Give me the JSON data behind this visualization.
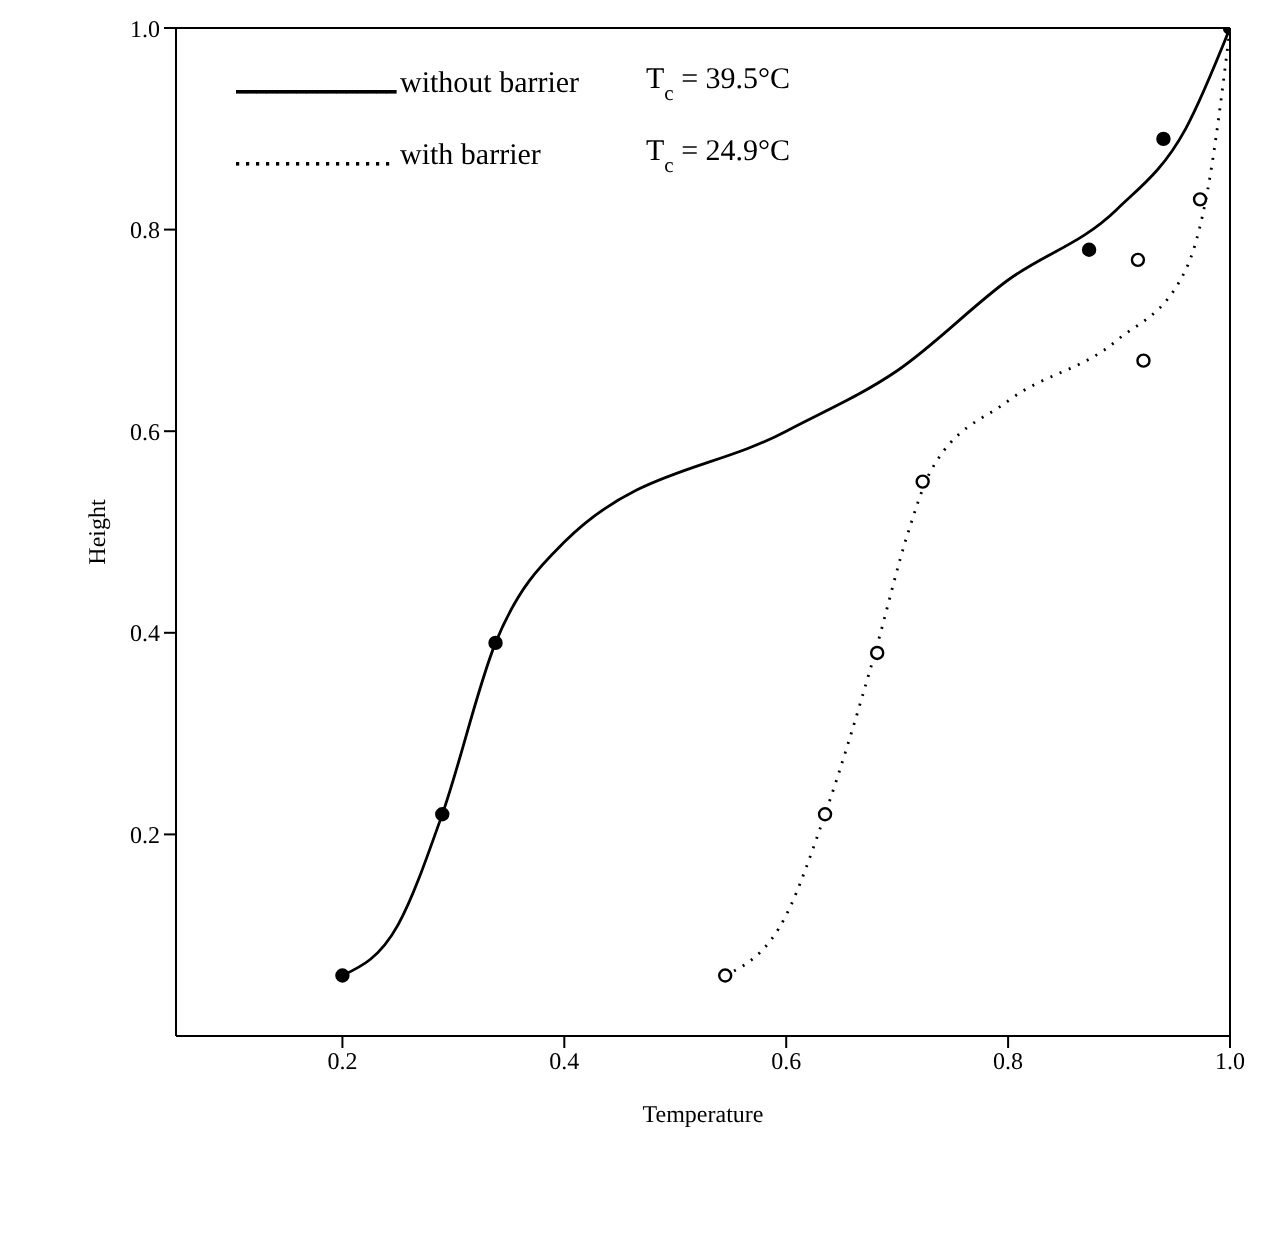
{
  "chart_data": {
    "type": "line",
    "xlabel": "Temperature",
    "ylabel": "Height",
    "xlim": [
      0.05,
      1.0
    ],
    "xticks": [
      0.2,
      0.4,
      0.6,
      0.8,
      {
        "value": 1,
        "label": "1.0"
      }
    ],
    "ylim": [
      0,
      1.0
    ],
    "yticks": [
      0.2,
      0.4,
      0.6,
      0.8,
      {
        "value": 1,
        "label": "1.0"
      }
    ],
    "grid": false,
    "legend": "top left",
    "annotations": [
      "T$_{c}$ = 39.5°C",
      "T$_{c}$ = 24.9°C"
    ],
    "series": [
      {
        "name": "without barrier",
        "type": "line",
        "color": "#000000",
        "line_style": "solid",
        "marker": "none",
        "x": [
          0.2,
          0.25,
          0.29,
          0.338,
          0.4,
          0.6,
          0.7,
          0.8,
          0.898,
          0.96,
          1.0
        ],
        "values": [
          0.06,
          0.11,
          0.22,
          0.39,
          0.49,
          0.6,
          0.66,
          0.75,
          0.82,
          0.9,
          1.0
        ]
      },
      {
        "name": "with barrier",
        "type": "line",
        "color": "#000000",
        "line_style": "dotted",
        "marker": "none",
        "x": [
          0.545,
          0.6,
          0.635,
          0.68,
          0.71,
          0.73,
          0.8,
          0.898,
          0.96,
          0.98,
          1.0
        ],
        "values": [
          0.06,
          0.12,
          0.22,
          0.38,
          0.5,
          0.56,
          0.63,
          0.69,
          0.76,
          0.84,
          1.0
        ]
      },
      {
        "type": "scatter",
        "color": "#000000",
        "marker": "circle",
        "x": [
          0.2,
          0.29,
          0.338,
          0.873,
          0.94,
          1.0
        ],
        "values": [
          0.06,
          0.22,
          0.39,
          0.78,
          0.89,
          1.0
        ]
      },
      {
        "type": "scatter",
        "color": "#000000",
        "marker": "circle",
        "x": [
          0.545,
          0.635,
          0.682,
          0.723,
          0.917,
          0.922,
          0.973
        ],
        "values": [
          0.06,
          0.22,
          0.38,
          0.55,
          0.77,
          0.67,
          0.83
        ]
      }
    ]
  }
}
